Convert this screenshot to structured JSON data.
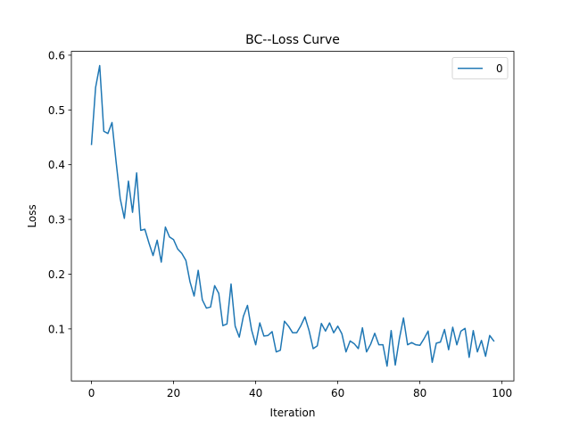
{
  "chart_data": {
    "type": "line",
    "title": "BC--Loss Curve",
    "xlabel": "Iteration",
    "ylabel": "Loss",
    "xlim": [
      -4.9,
      102.9
    ],
    "ylim": [
      0.005,
      0.607
    ],
    "xticks": [
      0,
      20,
      40,
      60,
      80,
      100
    ],
    "xtick_labels": [
      "0",
      "20",
      "40",
      "60",
      "80",
      "100"
    ],
    "yticks": [
      0.1,
      0.2,
      0.3,
      0.4,
      0.5,
      0.6
    ],
    "ytick_labels": [
      "0.1",
      "0.2",
      "0.3",
      "0.4",
      "0.5",
      "0.6"
    ],
    "grid": false,
    "legend_position": "top-right",
    "series": [
      {
        "name": "0",
        "color": "#1f77b4",
        "x": [
          0,
          1,
          2,
          3,
          4,
          5,
          6,
          7,
          8,
          9,
          10,
          11,
          12,
          13,
          14,
          15,
          16,
          17,
          18,
          19,
          20,
          21,
          22,
          23,
          24,
          25,
          26,
          27,
          28,
          29,
          30,
          31,
          32,
          33,
          34,
          35,
          36,
          37,
          38,
          39,
          40,
          41,
          42,
          43,
          44,
          45,
          46,
          47,
          48,
          49,
          50,
          51,
          52,
          53,
          54,
          55,
          56,
          57,
          58,
          59,
          60,
          61,
          62,
          63,
          64,
          65,
          66,
          67,
          68,
          69,
          70,
          71,
          72,
          73,
          74,
          75,
          76,
          77,
          78,
          79,
          80,
          81,
          82,
          83,
          84,
          85,
          86,
          87,
          88,
          89,
          90,
          91,
          92,
          93,
          94,
          95,
          96,
          97,
          98
        ],
        "values": [
          0.437,
          0.541,
          0.581,
          0.461,
          0.457,
          0.477,
          0.405,
          0.338,
          0.302,
          0.37,
          0.313,
          0.385,
          0.28,
          0.282,
          0.257,
          0.234,
          0.262,
          0.222,
          0.286,
          0.268,
          0.263,
          0.246,
          0.238,
          0.225,
          0.186,
          0.16,
          0.207,
          0.153,
          0.138,
          0.14,
          0.179,
          0.165,
          0.106,
          0.109,
          0.182,
          0.105,
          0.085,
          0.123,
          0.143,
          0.098,
          0.071,
          0.111,
          0.087,
          0.088,
          0.095,
          0.058,
          0.061,
          0.114,
          0.105,
          0.093,
          0.093,
          0.106,
          0.122,
          0.097,
          0.064,
          0.069,
          0.11,
          0.096,
          0.111,
          0.093,
          0.105,
          0.091,
          0.058,
          0.078,
          0.073,
          0.064,
          0.102,
          0.058,
          0.072,
          0.092,
          0.071,
          0.071,
          0.032,
          0.097,
          0.034,
          0.082,
          0.12,
          0.071,
          0.075,
          0.071,
          0.07,
          0.082,
          0.096,
          0.039,
          0.074,
          0.076,
          0.099,
          0.062,
          0.103,
          0.071,
          0.096,
          0.101,
          0.048,
          0.097,
          0.058,
          0.079,
          0.05,
          0.088,
          0.078
        ]
      }
    ]
  }
}
